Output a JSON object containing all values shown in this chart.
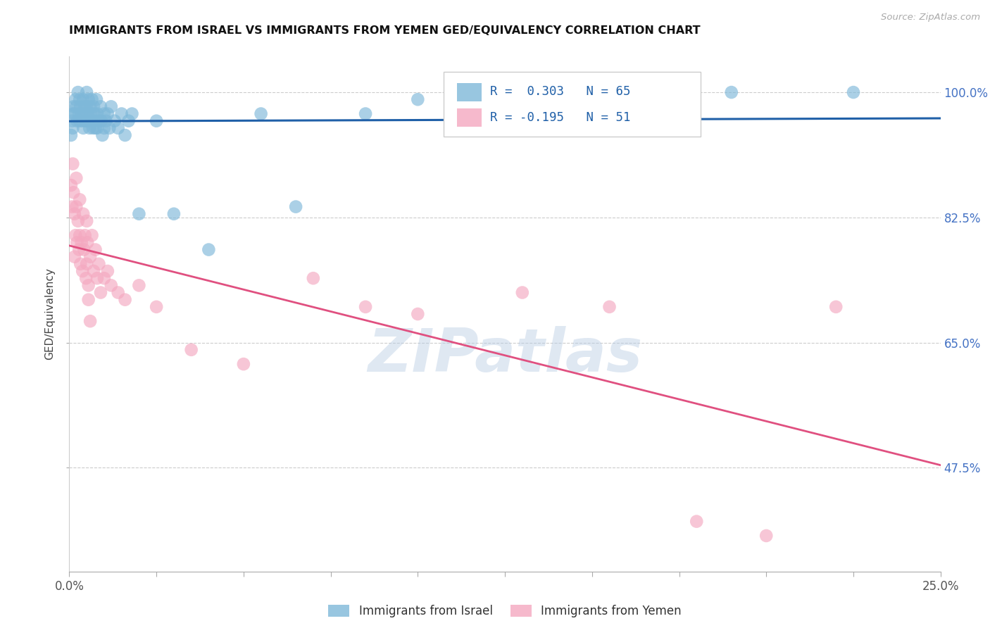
{
  "title": "IMMIGRANTS FROM ISRAEL VS IMMIGRANTS FROM YEMEN GED/EQUIVALENCY CORRELATION CHART",
  "source": "Source: ZipAtlas.com",
  "ylabel": "GED/Equivalency",
  "xlim": [
    0.0,
    25.0
  ],
  "ylim": [
    33.0,
    105.0
  ],
  "israel_R": 0.303,
  "israel_N": 65,
  "yemen_R": -0.195,
  "yemen_N": 51,
  "israel_color": "#7EB8D9",
  "yemen_color": "#F4A8C0",
  "israel_line_color": "#2060A8",
  "yemen_line_color": "#E05080",
  "watermark_color": "#B8CCE4",
  "legend_label_israel": "Immigrants from Israel",
  "legend_label_yemen": "Immigrants from Yemen",
  "ytick_vals": [
    47.5,
    65.0,
    82.5,
    100.0
  ],
  "israel_x": [
    0.05,
    0.08,
    0.1,
    0.1,
    0.12,
    0.15,
    0.18,
    0.2,
    0.22,
    0.25,
    0.28,
    0.3,
    0.3,
    0.32,
    0.35,
    0.38,
    0.4,
    0.4,
    0.42,
    0.45,
    0.48,
    0.5,
    0.5,
    0.5,
    0.52,
    0.55,
    0.58,
    0.6,
    0.6,
    0.62,
    0.65,
    0.68,
    0.7,
    0.7,
    0.72,
    0.75,
    0.78,
    0.8,
    0.8,
    0.85,
    0.9,
    0.92,
    0.95,
    1.0,
    1.0,
    1.05,
    1.1,
    1.15,
    1.2,
    1.3,
    1.4,
    1.5,
    1.6,
    1.7,
    1.8,
    2.0,
    2.5,
    3.0,
    4.0,
    5.5,
    6.5,
    8.5,
    10.0,
    19.0,
    22.5
  ],
  "israel_y": [
    94.0,
    96.0,
    97.0,
    95.0,
    98.0,
    97.0,
    99.0,
    98.0,
    96.0,
    100.0,
    97.0,
    99.0,
    96.0,
    98.0,
    97.0,
    96.0,
    99.0,
    95.0,
    97.0,
    98.0,
    96.0,
    100.0,
    98.0,
    96.0,
    97.0,
    99.0,
    95.0,
    98.0,
    96.0,
    97.0,
    99.0,
    95.0,
    98.0,
    96.0,
    97.0,
    95.0,
    99.0,
    97.0,
    95.0,
    96.0,
    98.0,
    96.0,
    94.0,
    97.0,
    95.0,
    96.0,
    97.0,
    95.0,
    98.0,
    96.0,
    95.0,
    97.0,
    94.0,
    96.0,
    97.0,
    83.0,
    96.0,
    83.0,
    78.0,
    97.0,
    84.0,
    97.0,
    99.0,
    100.0,
    100.0
  ],
  "yemen_x": [
    0.05,
    0.08,
    0.1,
    0.12,
    0.15,
    0.18,
    0.2,
    0.22,
    0.25,
    0.28,
    0.3,
    0.3,
    0.32,
    0.35,
    0.38,
    0.4,
    0.42,
    0.45,
    0.48,
    0.5,
    0.5,
    0.52,
    0.55,
    0.6,
    0.65,
    0.7,
    0.75,
    0.8,
    0.85,
    0.9,
    1.0,
    1.1,
    1.2,
    1.4,
    1.6,
    2.0,
    2.5,
    3.5,
    5.0,
    7.0,
    8.5,
    10.0,
    13.0,
    15.5,
    18.0,
    20.0,
    22.0,
    0.15,
    0.2,
    0.55,
    0.6
  ],
  "yemen_y": [
    87.0,
    84.0,
    90.0,
    86.0,
    83.0,
    80.0,
    84.0,
    79.0,
    82.0,
    78.0,
    85.0,
    80.0,
    76.0,
    79.0,
    75.0,
    83.0,
    78.0,
    80.0,
    74.0,
    82.0,
    76.0,
    79.0,
    73.0,
    77.0,
    80.0,
    75.0,
    78.0,
    74.0,
    76.0,
    72.0,
    74.0,
    75.0,
    73.0,
    72.0,
    71.0,
    73.0,
    70.0,
    64.0,
    62.0,
    74.0,
    70.0,
    69.0,
    72.0,
    70.0,
    40.0,
    38.0,
    70.0,
    77.0,
    88.0,
    71.0,
    68.0
  ]
}
